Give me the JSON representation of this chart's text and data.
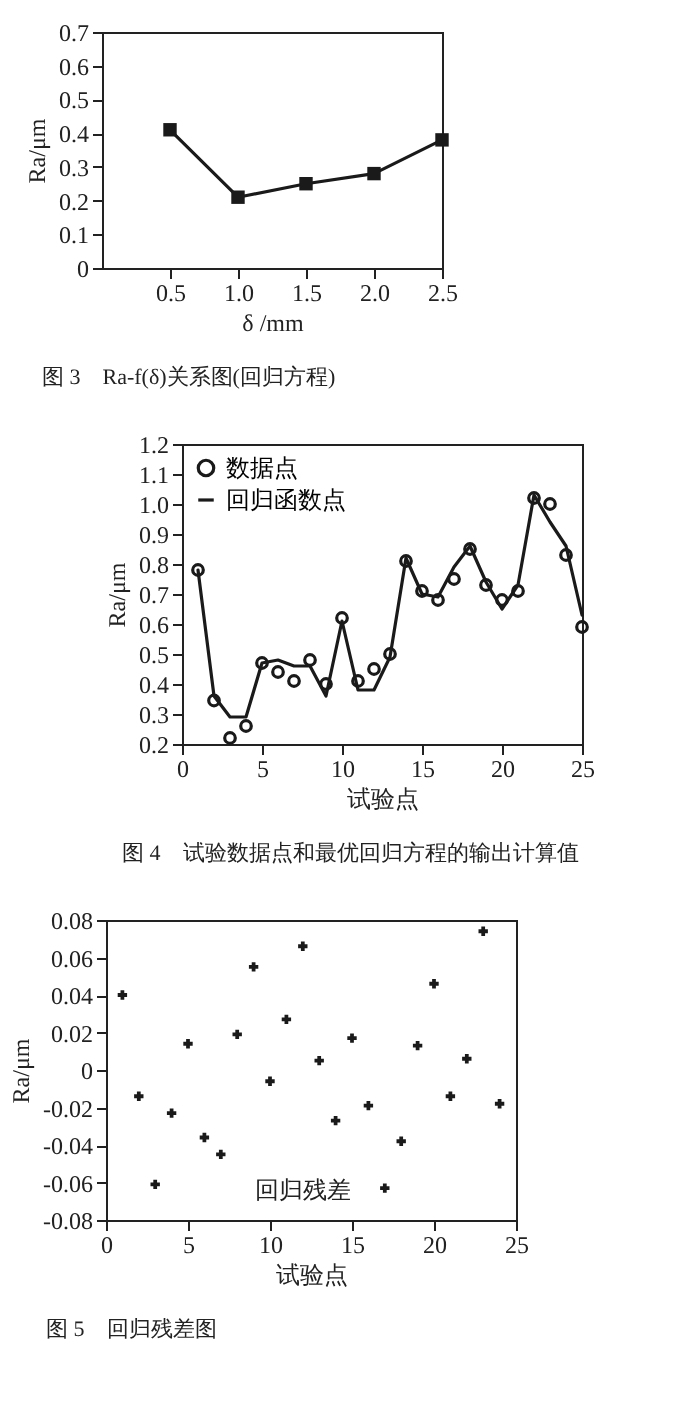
{
  "chart_data": [
    {
      "type": "line",
      "title": "图 3　Ra-f(δ)关系图(回归方程)",
      "xlabel": "δ /mm",
      "ylabel": "Ra/μm",
      "marker": "square",
      "color": "#1a1a1a",
      "x": [
        0.5,
        1.0,
        1.5,
        2.0,
        2.5
      ],
      "values": [
        0.41,
        0.21,
        0.25,
        0.28,
        0.38
      ],
      "xlim": [
        0,
        2.5
      ],
      "xticks": [
        0.5,
        {
          "value": 1,
          "label": "1.0"
        },
        1.5,
        {
          "value": 2,
          "label": "2.0"
        },
        2.5
      ],
      "ylim": [
        0,
        0.7
      ],
      "yticks": [
        0,
        0.1,
        0.2,
        0.3,
        0.4,
        0.5,
        0.6,
        0.7
      ]
    },
    {
      "type": "line",
      "title": "图 4　试验数据点和最优回归方程的输出计算值",
      "xlabel": "试验点",
      "ylabel": "Ra/μm",
      "legend": "top left",
      "x": [
        1,
        2,
        3,
        4,
        5,
        6,
        7,
        8,
        9,
        10,
        11,
        12,
        13,
        14,
        15,
        16,
        17,
        18,
        19,
        20,
        21,
        22,
        23,
        24,
        25
      ],
      "series": [
        {
          "name": "数据点",
          "type": "scatter",
          "marker": "circle",
          "color": "#1a1a1a",
          "values": [
            0.78,
            0.345,
            0.22,
            0.26,
            0.47,
            0.44,
            0.41,
            0.48,
            0.4,
            0.62,
            0.41,
            0.45,
            0.5,
            0.81,
            0.71,
            0.68,
            0.75,
            0.85,
            0.73,
            0.68,
            0.71,
            1.02,
            1.0,
            0.83,
            0.59
          ]
        },
        {
          "name": "回归函数点",
          "type": "line",
          "color": "#1a1a1a",
          "values": [
            0.78,
            0.36,
            0.29,
            0.29,
            0.47,
            0.48,
            0.46,
            0.46,
            0.36,
            0.61,
            0.38,
            0.38,
            0.49,
            0.82,
            0.7,
            0.69,
            0.79,
            0.86,
            0.74,
            0.65,
            0.73,
            1.03,
            0.94,
            0.86,
            0.63
          ]
        }
      ],
      "xlim": [
        0,
        25
      ],
      "xticks": [
        0,
        5,
        10,
        15,
        20,
        25
      ],
      "ylim": [
        0.2,
        1.2
      ],
      "yticks": [
        0.2,
        0.3,
        0.4,
        0.5,
        0.6,
        0.7,
        0.8,
        0.9,
        {
          "value": 1,
          "label": "1.0"
        },
        1.1,
        1.2
      ]
    },
    {
      "type": "scatter",
      "title": "图 5　回归残差图",
      "xlabel": "试验点",
      "ylabel": "Ra/μm",
      "marker": "cross",
      "color": "#1a1a1a",
      "annotations": [
        "回归残差"
      ],
      "x": [
        1,
        2,
        3,
        4,
        5,
        6,
        7,
        8,
        9,
        10,
        11,
        12,
        13,
        14,
        15,
        16,
        17,
        18,
        19,
        20,
        21,
        22,
        23,
        24
      ],
      "values": [
        0.04,
        -0.014,
        -0.061,
        -0.023,
        0.014,
        -0.036,
        -0.045,
        0.019,
        0.055,
        -0.006,
        0.027,
        0.066,
        0.005,
        -0.027,
        0.017,
        -0.019,
        -0.063,
        -0.038,
        0.013,
        0.046,
        -0.014,
        0.006,
        0.074,
        -0.018
      ],
      "xlim": [
        0,
        25
      ],
      "xticks": [
        0,
        5,
        10,
        15,
        20,
        25
      ],
      "ylim": [
        -0.08,
        0.08
      ],
      "yticks": [
        -0.08,
        -0.06,
        -0.04,
        -0.02,
        0,
        0.02,
        0.04,
        0.06,
        0.08
      ]
    }
  ]
}
